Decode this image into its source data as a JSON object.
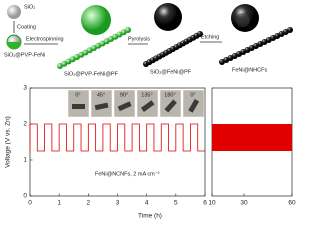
{
  "schematic": {
    "sio2": "SiO₂",
    "coating": "Coating",
    "sio2_pvp_feni": "SiO₂@PVP-FeNi",
    "electrospinning": "Electrospinning",
    "sio2_pvp_feni_pf": "SiO₂@PVP-FeNi@PF",
    "pyrolysis": "Pyrolysis",
    "sio2_feni_pf": "SiO₂@FeNi@PF",
    "etching": "Etching",
    "feni_nhcfs": "FeNi@NHCFs"
  },
  "chart_data": [
    {
      "type": "line",
      "ylabel": "Voltage (V vs. Zn)",
      "xlabel": "Time (h)",
      "color": "#e00000",
      "annotation": "FeNi@NCNFs, 2 mA cm⁻²",
      "insets": [
        "0°",
        "45°",
        "90°",
        "135°",
        "180°",
        "0°"
      ],
      "x": [
        0,
        0,
        0.25,
        0.25,
        0.5,
        0.5,
        0.75,
        0.75,
        1,
        1,
        1.25,
        1.25,
        1.5,
        1.5,
        1.75,
        1.75,
        2,
        2,
        2.25,
        2.25,
        2.5,
        2.5,
        2.75,
        2.75,
        3,
        3,
        3.25,
        3.25,
        3.5,
        3.5,
        3.75,
        3.75,
        4,
        4,
        4.25,
        4.25,
        4.5,
        4.5,
        4.75,
        4.75,
        5,
        5,
        5.25,
        5.25,
        5.5,
        5.5,
        5.75,
        5.75,
        6
      ],
      "values": [
        1.25,
        2,
        2,
        1.25,
        1.25,
        2,
        2,
        1.25,
        1.25,
        2,
        2,
        1.25,
        1.25,
        2,
        2,
        1.25,
        1.25,
        2,
        2,
        1.25,
        1.25,
        2,
        2,
        1.25,
        1.25,
        2,
        2,
        1.25,
        1.25,
        2,
        2,
        1.25,
        1.25,
        2,
        2,
        1.25,
        1.25,
        2,
        2,
        1.25,
        1.25,
        2,
        2,
        1.25,
        1.25,
        2,
        2,
        1.25,
        1.25
      ],
      "xlim": [
        0,
        6
      ],
      "xticks": [
        0,
        1,
        2,
        3,
        4,
        5,
        6
      ],
      "ylim": [
        0,
        3
      ],
      "yticks": [
        0,
        1,
        2,
        3
      ]
    },
    {
      "type": "band",
      "color": "#e00000",
      "x": [
        10,
        60
      ],
      "values_high": [
        2,
        2
      ],
      "values_low": [
        1.25,
        1.25
      ],
      "xlim": [
        10,
        60
      ],
      "xticks": [
        10,
        30,
        60
      ],
      "ylim": [
        0,
        3
      ]
    }
  ]
}
